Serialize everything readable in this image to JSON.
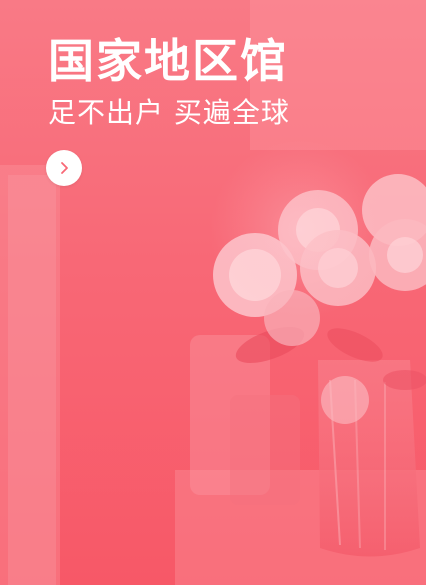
{
  "banner": {
    "title": "国家地区馆",
    "subtitle": "足不出户 买遍全球",
    "cta_icon": "chevron-right-icon",
    "tint_color": "#f86876"
  }
}
